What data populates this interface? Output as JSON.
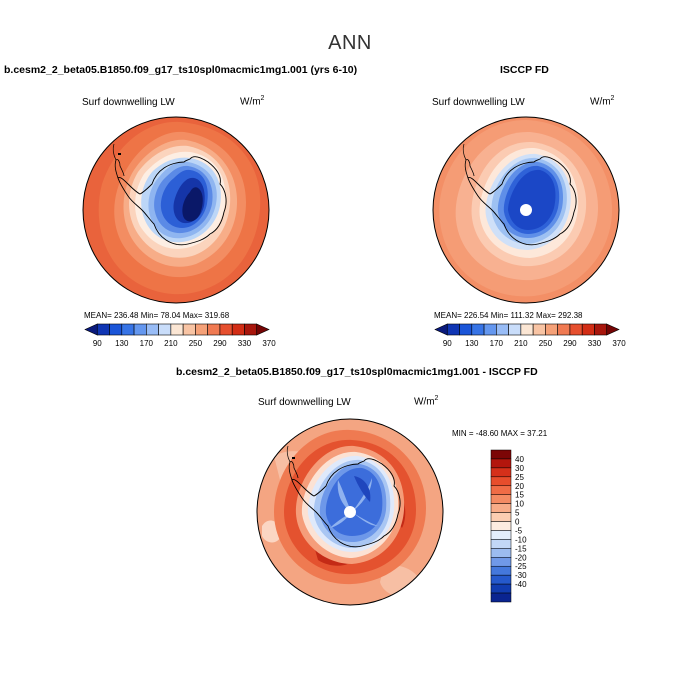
{
  "page": {
    "season": "ANN",
    "variable_name": "Surf downwelling LW",
    "units_base": "W/m",
    "units_exp": "2"
  },
  "panels": {
    "model": {
      "title": "b.cesm2_2_beta05.B1850.f09_g17_ts10spl0macmic1mg1.001 (yrs 6-10)",
      "stats_text": "MEAN= 236.48    Min=  78.04    Max= 319.68"
    },
    "obs": {
      "title": "ISCCP FD",
      "stats_text": "MEAN= 226.54    Min= 111.32    Max= 292.38"
    },
    "diff": {
      "title": "b.cesm2_2_beta05.B1850.f09_g17_ts10spl0macmic1mg1.001 - ISCCP FD",
      "stats_text": "MIN = -48.60  MAX =  37.21"
    }
  },
  "chart_data": [
    {
      "type": "heatmap",
      "title": "b.cesm2_2_beta05.B1850.f09_g17_ts10spl0macmic1mg1.001 (yrs 6-10)",
      "projection": "south-polar-stereographic",
      "variable": "Surf downwelling LW",
      "units": "W/m2",
      "mean": 236.48,
      "min": 78.04,
      "max": 319.68,
      "colorbar_ticks": [
        "90",
        "130",
        "170",
        "210",
        "250",
        "290",
        "330",
        "370"
      ],
      "colorbar_colors": [
        "#0a1a7c",
        "#0f35b4",
        "#1a55d8",
        "#3774e6",
        "#6497ef",
        "#98bcf6",
        "#c9ddfa",
        "#fbe6d4",
        "#f8c4a4",
        "#f5a178",
        "#f07a52",
        "#e64f2e",
        "#d22d15",
        "#a8160c",
        "#740404"
      ]
    },
    {
      "type": "heatmap",
      "title": "ISCCP FD",
      "projection": "south-polar-stereographic",
      "variable": "Surf downwelling LW",
      "units": "W/m2",
      "mean": 226.54,
      "min": 111.32,
      "max": 292.38,
      "colorbar_ticks": [
        "90",
        "130",
        "170",
        "210",
        "250",
        "290",
        "330",
        "370"
      ],
      "colorbar_colors": [
        "#0a1a7c",
        "#0f35b4",
        "#1a55d8",
        "#3774e6",
        "#6497ef",
        "#98bcf6",
        "#c9ddfa",
        "#fbe6d4",
        "#f8c4a4",
        "#f5a178",
        "#f07a52",
        "#e64f2e",
        "#d22d15",
        "#a8160c",
        "#740404"
      ]
    },
    {
      "type": "heatmap",
      "title": "b.cesm2_2_beta05.B1850.f09_g17_ts10spl0macmic1mg1.001 - ISCCP FD",
      "projection": "south-polar-stereographic",
      "variable": "Surf downwelling LW",
      "units": "W/m2",
      "min": -48.6,
      "max": 37.21,
      "colorbar_ticks": [
        "40",
        "30",
        "25",
        "20",
        "15",
        "10",
        "5",
        "0",
        "-5",
        "-10",
        "-15",
        "-20",
        "-25",
        "-30",
        "-40"
      ],
      "colorbar_colors": [
        "#7c0606",
        "#b3160d",
        "#d5301a",
        "#e74d2c",
        "#f06c46",
        "#f48b63",
        "#f8ac88",
        "#fbcdb1",
        "#fdece0",
        "#e4eefb",
        "#c2d7f6",
        "#9cbcf0",
        "#7099e8",
        "#4478dc",
        "#2559cc",
        "#113cb0",
        "#0a2490"
      ]
    }
  ]
}
